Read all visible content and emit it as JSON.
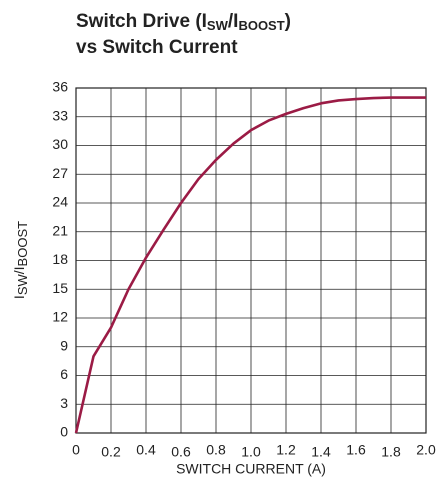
{
  "chart_data": {
    "type": "line",
    "title": {
      "line1": [
        "Switch Drive (I",
        "SW",
        "/I",
        "BOOST",
        ")"
      ],
      "line2": "vs Switch Current"
    },
    "xlabel": "SWITCH CURRENT (A)",
    "ylabel": [
      "I",
      "SW",
      "/I",
      "BOOST"
    ],
    "x": [
      0,
      0.1,
      0.2,
      0.3,
      0.4,
      0.5,
      0.6,
      0.7,
      0.8,
      0.9,
      1.0,
      1.1,
      1.2,
      1.3,
      1.4,
      1.5,
      1.6,
      1.7,
      1.8,
      1.9,
      2.0
    ],
    "series": [
      {
        "color": "#9b1b45",
        "values": [
          0,
          8,
          11,
          15,
          18.3,
          21.2,
          24,
          26.5,
          28.5,
          30.2,
          31.6,
          32.6,
          33.3,
          33.9,
          34.4,
          34.7,
          34.85,
          34.95,
          35,
          35,
          35
        ]
      }
    ],
    "xlim": [
      0,
      2
    ],
    "xticks": [
      0,
      0.2,
      0.4,
      0.6,
      0.8,
      {
        "value": 1,
        "label": "1.0"
      },
      1.2,
      1.4,
      1.6,
      1.8,
      {
        "value": 2,
        "label": "2.0"
      }
    ],
    "ylim": [
      0,
      36
    ],
    "yticks": [
      0,
      3,
      6,
      9,
      12,
      15,
      18,
      21,
      24,
      27,
      30,
      33,
      36
    ],
    "grid": true
  }
}
